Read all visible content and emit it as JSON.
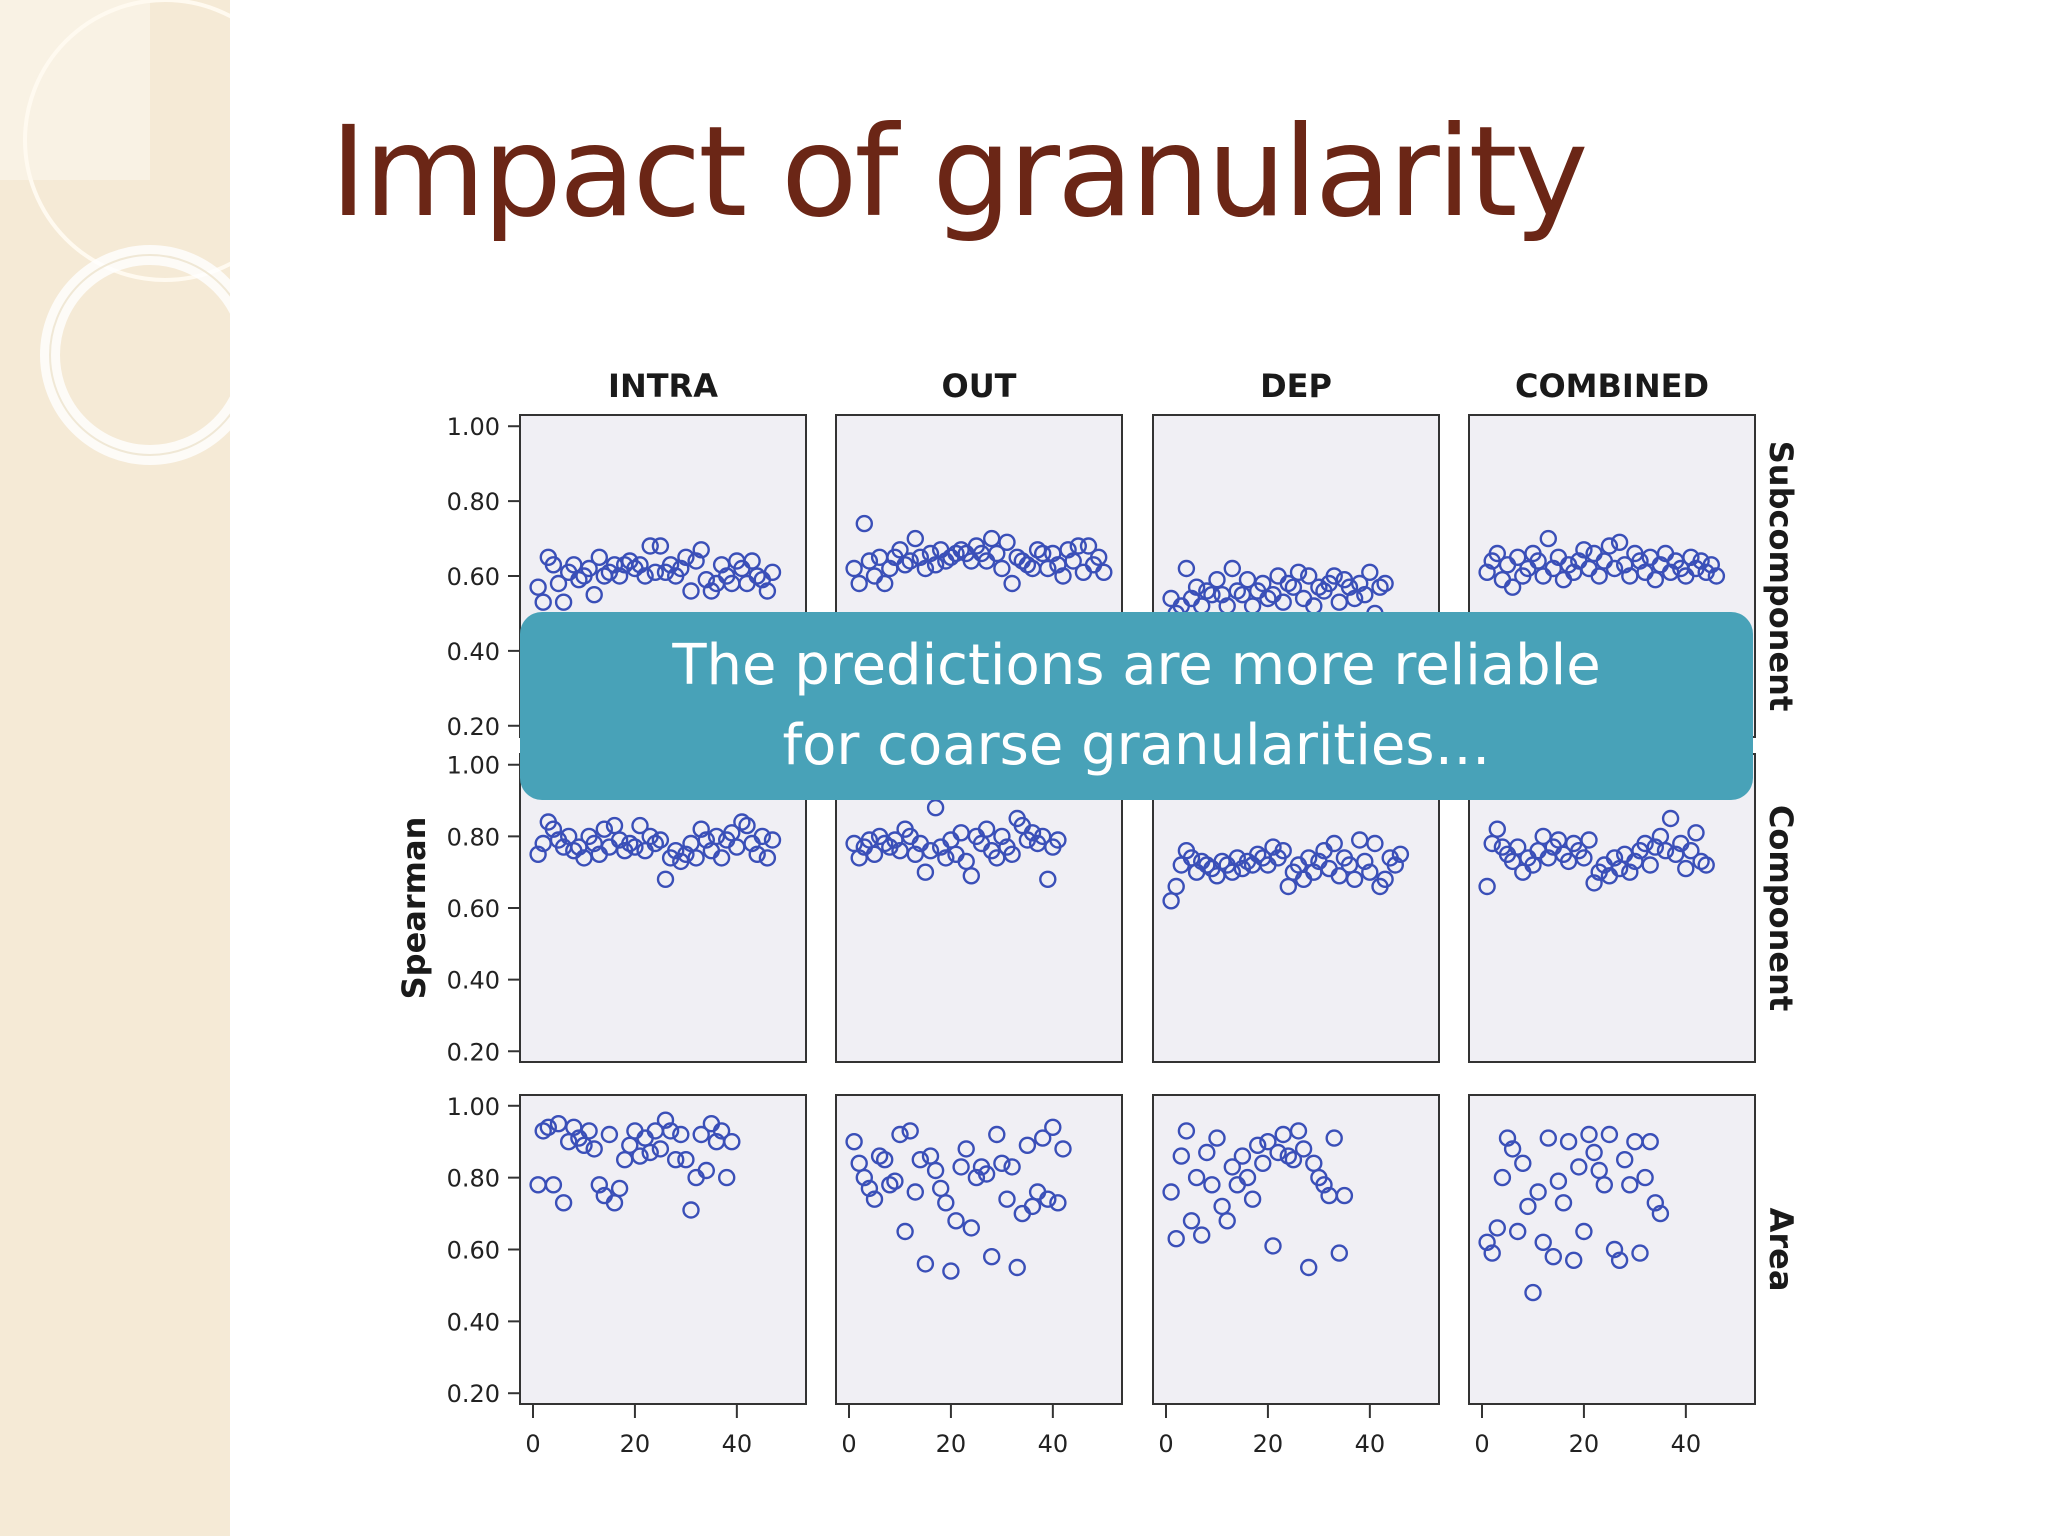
{
  "slide": {
    "title": "Impact of granularity",
    "callout": {
      "line1": "The predictions are more reliable",
      "line2": "for coarse granularities…"
    }
  },
  "colors": {
    "title": "#6b2616",
    "callout_bg": "#48a2b8",
    "marker": "#3a4fb8",
    "panel_bg": "#f0eff4",
    "sidebar": "#f5ead6"
  },
  "chart_data": {
    "type": "scatter",
    "ylabel": "Spearman",
    "columns": [
      "INTRA",
      "OUT",
      "DEP",
      "COMBINED"
    ],
    "rows": [
      "Subcomponent",
      "Component",
      "Area"
    ],
    "xticks": [
      "0",
      "20",
      "40"
    ],
    "ytick_labels": [
      "1.00",
      "0.80",
      "0.60",
      "0.40",
      "0.20"
    ],
    "xlim": [
      0,
      52
    ],
    "ylim": [
      0.17,
      1.03
    ],
    "grid": false,
    "marker": "open circle",
    "panels": {
      "Subcomponent": {
        "INTRA": [
          0.57,
          0.53,
          0.65,
          0.63,
          0.58,
          0.53,
          0.61,
          0.63,
          0.59,
          0.6,
          0.62,
          0.55,
          0.65,
          0.6,
          0.61,
          0.63,
          0.6,
          0.63,
          0.64,
          0.62,
          0.63,
          0.6,
          0.68,
          0.61,
          0.68,
          0.61,
          0.63,
          0.6,
          0.62,
          0.65,
          0.56,
          0.64,
          0.67,
          0.59,
          0.56,
          0.58,
          0.63,
          0.6,
          0.58,
          0.64,
          0.62,
          0.58,
          0.64,
          0.6,
          0.59,
          0.56,
          0.61
        ],
        "OUT": [
          0.62,
          0.58,
          0.74,
          0.64,
          0.6,
          0.65,
          0.58,
          0.62,
          0.65,
          0.67,
          0.63,
          0.64,
          0.7,
          0.65,
          0.62,
          0.66,
          0.63,
          0.67,
          0.64,
          0.65,
          0.66,
          0.67,
          0.66,
          0.64,
          0.68,
          0.66,
          0.64,
          0.7,
          0.66,
          0.62,
          0.69,
          0.58,
          0.65,
          0.64,
          0.63,
          0.62,
          0.67,
          0.66,
          0.62,
          0.66,
          0.63,
          0.6,
          0.67,
          0.64,
          0.68,
          0.61,
          0.68,
          0.63,
          0.65,
          0.61
        ],
        "DEP": [
          0.54,
          0.5,
          0.52,
          0.62,
          0.54,
          0.57,
          0.52,
          0.56,
          0.55,
          0.59,
          0.55,
          0.52,
          0.62,
          0.56,
          0.55,
          0.59,
          0.52,
          0.56,
          0.58,
          0.54,
          0.55,
          0.6,
          0.53,
          0.58,
          0.57,
          0.61,
          0.54,
          0.6,
          0.52,
          0.57,
          0.56,
          0.58,
          0.6,
          0.53,
          0.59,
          0.57,
          0.54,
          0.58,
          0.55,
          0.61,
          0.5,
          0.57,
          0.58
        ],
        "COMBINED": [
          0.61,
          0.64,
          0.66,
          0.59,
          0.63,
          0.57,
          0.65,
          0.6,
          0.62,
          0.66,
          0.64,
          0.6,
          0.7,
          0.62,
          0.65,
          0.59,
          0.63,
          0.61,
          0.64,
          0.67,
          0.62,
          0.66,
          0.6,
          0.64,
          0.68,
          0.62,
          0.69,
          0.63,
          0.6,
          0.66,
          0.64,
          0.61,
          0.65,
          0.59,
          0.63,
          0.66,
          0.61,
          0.64,
          0.62,
          0.6,
          0.65,
          0.62,
          0.64,
          0.61,
          0.63,
          0.6
        ]
      },
      "Component": {
        "INTRA": [
          0.75,
          0.78,
          0.84,
          0.82,
          0.79,
          0.77,
          0.8,
          0.76,
          0.77,
          0.74,
          0.8,
          0.78,
          0.75,
          0.82,
          0.77,
          0.83,
          0.79,
          0.76,
          0.78,
          0.77,
          0.83,
          0.76,
          0.8,
          0.78,
          0.79,
          0.68,
          0.74,
          0.76,
          0.73,
          0.75,
          0.78,
          0.74,
          0.82,
          0.79,
          0.76,
          0.8,
          0.74,
          0.79,
          0.81,
          0.77,
          0.84,
          0.83,
          0.78,
          0.75,
          0.8,
          0.74,
          0.79
        ],
        "OUT": [
          0.78,
          0.74,
          0.77,
          0.79,
          0.75,
          0.8,
          0.78,
          0.77,
          0.79,
          0.76,
          0.82,
          0.8,
          0.75,
          0.78,
          0.7,
          0.76,
          0.88,
          0.77,
          0.74,
          0.79,
          0.75,
          0.81,
          0.73,
          0.69,
          0.8,
          0.78,
          0.82,
          0.76,
          0.74,
          0.8,
          0.77,
          0.75,
          0.85,
          0.83,
          0.79,
          0.81,
          0.78,
          0.8,
          0.68,
          0.77,
          0.79
        ],
        "DEP": [
          0.62,
          0.66,
          0.72,
          0.76,
          0.74,
          0.7,
          0.73,
          0.72,
          0.71,
          0.69,
          0.73,
          0.72,
          0.7,
          0.74,
          0.71,
          0.73,
          0.72,
          0.75,
          0.74,
          0.72,
          0.77,
          0.74,
          0.76,
          0.66,
          0.7,
          0.72,
          0.68,
          0.74,
          0.7,
          0.73,
          0.76,
          0.71,
          0.78,
          0.69,
          0.74,
          0.72,
          0.68,
          0.79,
          0.73,
          0.7,
          0.78,
          0.66,
          0.68,
          0.74,
          0.72,
          0.75
        ],
        "COMBINED": [
          0.66,
          0.78,
          0.82,
          0.77,
          0.75,
          0.73,
          0.77,
          0.7,
          0.74,
          0.72,
          0.76,
          0.8,
          0.74,
          0.77,
          0.79,
          0.75,
          0.73,
          0.78,
          0.76,
          0.74,
          0.79,
          0.67,
          0.7,
          0.72,
          0.69,
          0.74,
          0.71,
          0.75,
          0.7,
          0.73,
          0.76,
          0.78,
          0.72,
          0.77,
          0.8,
          0.76,
          0.85,
          0.75,
          0.78,
          0.71,
          0.76,
          0.81,
          0.73,
          0.72
        ]
      },
      "Area": {
        "INTRA": [
          0.78,
          0.93,
          0.94,
          0.78,
          0.95,
          0.73,
          0.9,
          0.94,
          0.91,
          0.89,
          0.93,
          0.88,
          0.78,
          0.75,
          0.92,
          0.73,
          0.77,
          0.85,
          0.89,
          0.93,
          0.86,
          0.91,
          0.87,
          0.93,
          0.88,
          0.96,
          0.93,
          0.85,
          0.92,
          0.85,
          0.71,
          0.8,
          0.92,
          0.82,
          0.95,
          0.9,
          0.93,
          0.8,
          0.9
        ],
        "OUT": [
          0.9,
          0.84,
          0.8,
          0.77,
          0.74,
          0.86,
          0.85,
          0.78,
          0.79,
          0.92,
          0.65,
          0.93,
          0.76,
          0.85,
          0.56,
          0.86,
          0.82,
          0.77,
          0.73,
          0.54,
          0.68,
          0.83,
          0.88,
          0.66,
          0.8,
          0.83,
          0.81,
          0.58,
          0.92,
          0.84,
          0.74,
          0.83,
          0.55,
          0.7,
          0.89,
          0.72,
          0.76,
          0.91,
          0.74,
          0.94,
          0.73,
          0.88
        ],
        "DEP": [
          0.76,
          0.63,
          0.86,
          0.93,
          0.68,
          0.8,
          0.64,
          0.87,
          0.78,
          0.91,
          0.72,
          0.68,
          0.83,
          0.78,
          0.86,
          0.8,
          0.74,
          0.89,
          0.84,
          0.9,
          0.61,
          0.87,
          0.92,
          0.86,
          0.85,
          0.93,
          0.88,
          0.55,
          0.84,
          0.8,
          0.78,
          0.75,
          0.91,
          0.59,
          0.75
        ],
        "COMBINED": [
          0.62,
          0.59,
          0.66,
          0.8,
          0.91,
          0.88,
          0.65,
          0.84,
          0.72,
          0.48,
          0.76,
          0.62,
          0.91,
          0.58,
          0.79,
          0.73,
          0.9,
          0.57,
          0.83,
          0.65,
          0.92,
          0.87,
          0.82,
          0.78,
          0.92,
          0.6,
          0.57,
          0.85,
          0.78,
          0.9,
          0.59,
          0.8,
          0.9,
          0.73,
          0.7
        ]
      }
    }
  }
}
